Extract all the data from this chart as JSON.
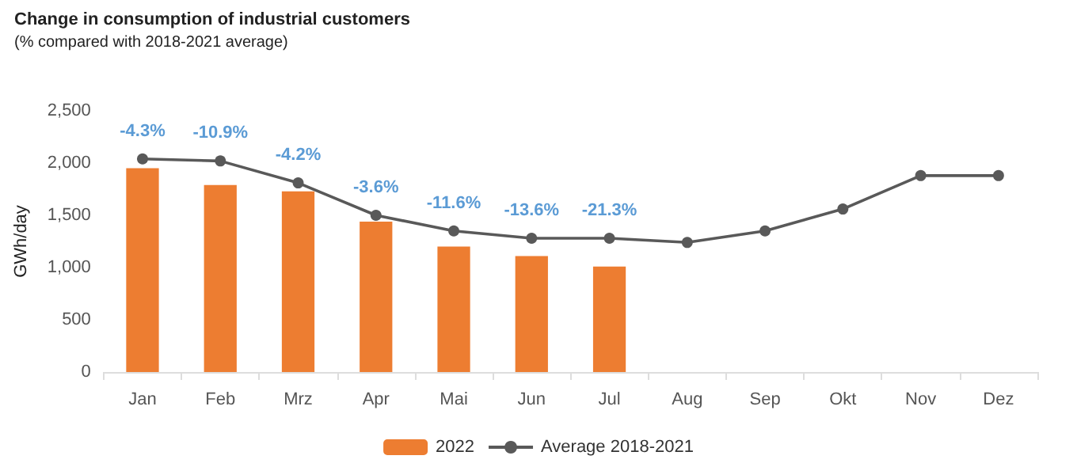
{
  "chart_data": {
    "type": "bar",
    "title": "Change in consumption of industrial customers",
    "subtitle": "(% compared with 2018-2021 average)",
    "ylabel": "GWh/day",
    "categories": [
      "Jan",
      "Feb",
      "Mrz",
      "Apr",
      "Mai",
      "Jun",
      "Jul",
      "Aug",
      "Sep",
      "Okt",
      "Nov",
      "Dez"
    ],
    "series": [
      {
        "name": "2022",
        "color": "#ed7d31",
        "values": [
          1950,
          1790,
          1730,
          1440,
          1200,
          1110,
          1010,
          null,
          null,
          null,
          null,
          null
        ]
      },
      {
        "name": "Average 2018-2021",
        "type": "line",
        "color": "#595959",
        "values": [
          2040,
          2020,
          1810,
          1500,
          1350,
          1280,
          1280,
          1240,
          1350,
          1560,
          1880,
          1880
        ]
      }
    ],
    "annotations": [
      {
        "text": "-4.3%",
        "x": "Jan",
        "y": 2040
      },
      {
        "text": "-10.9%",
        "x": "Feb",
        "y": 2020
      },
      {
        "text": "-4.2%",
        "x": "Mrz",
        "y": 1810
      },
      {
        "text": "-3.6%",
        "x": "Apr",
        "y": 1500
      },
      {
        "text": "-11.6%",
        "x": "Mai",
        "y": 1350
      },
      {
        "text": "-13.6%",
        "x": "Jun",
        "y": 1280
      },
      {
        "text": "-21.3%",
        "x": "Jul",
        "y": 1280
      }
    ],
    "ylim": [
      0,
      2500
    ],
    "yticks": [
      0,
      500,
      {
        "value": 1000,
        "label": "1,000"
      },
      {
        "value": 1500,
        "label": "1,500"
      },
      {
        "value": 2000,
        "label": "2,000"
      },
      {
        "value": 2500,
        "label": "2,500"
      }
    ],
    "grid": false,
    "legend": "bottom",
    "marker": "circle",
    "line_style": "solid"
  }
}
